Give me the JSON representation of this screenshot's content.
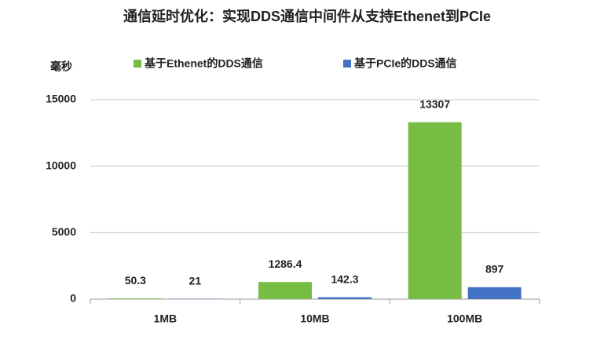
{
  "chart_data": {
    "type": "bar",
    "title": "通信延时优化：实现DDS通信中间件从支持Ethenet到PCIe",
    "y_label": "毫秒",
    "categories": [
      "1MB",
      "10MB",
      "100MB"
    ],
    "series": [
      {
        "name": "基于Ethenet的DDS通信",
        "color": "#77bc43",
        "values": [
          50.3,
          1286.4,
          13307
        ]
      },
      {
        "name": "基于PCIe的DDS通信",
        "color": "#4472c4",
        "values": [
          21,
          142.3,
          897
        ]
      }
    ],
    "ylim": [
      0,
      15000
    ],
    "yticks": [
      0,
      5000,
      10000,
      15000
    ],
    "grid": true,
    "legend": "top"
  }
}
